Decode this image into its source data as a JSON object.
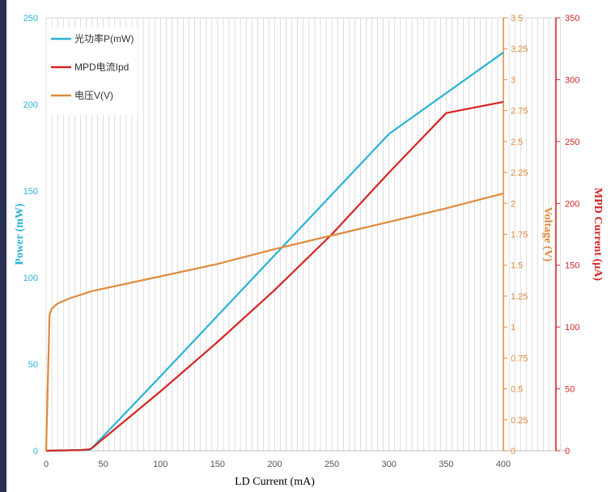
{
  "chart_data": {
    "type": "line",
    "xlabel": "LD Current (mA)",
    "x_range": [
      0,
      450
    ],
    "x_ticks": [
      0,
      50,
      100,
      150,
      200,
      250,
      300,
      350,
      400
    ],
    "grid": {
      "vertical_minor": true,
      "vertical_minor_step": 5
    },
    "legend_position": "top-left",
    "axes": {
      "power": {
        "label": "Power (mW)",
        "range": [
          0,
          250
        ],
        "ticks": [
          0,
          50,
          100,
          150,
          200,
          250
        ],
        "side": "left",
        "color": "#29b3d6"
      },
      "voltage": {
        "label": "Voltage (V)",
        "range": [
          0,
          3.5
        ],
        "ticks": [
          "0",
          "0.25",
          "0.5",
          "0.75",
          "1",
          "1.25",
          "1.5",
          "1.75",
          "2",
          "2.25",
          "2.5",
          "2.75",
          "3",
          "3.25",
          "3.5"
        ],
        "side": "right",
        "color": "#e08a3c"
      },
      "mpd": {
        "label": "MPD Current (μA)",
        "range": [
          0,
          350
        ],
        "ticks": [
          0,
          50,
          100,
          150,
          200,
          250,
          300,
          350
        ],
        "side": "right",
        "color": "#d42424"
      }
    },
    "series": [
      {
        "name": "光功率P(mW)",
        "axis": "power",
        "color": "#29b3d6",
        "x": [
          0,
          38,
          40,
          100,
          200,
          300,
          400
        ],
        "y": [
          0,
          0.5,
          1.5,
          43,
          113,
          183,
          230
        ]
      },
      {
        "name": "MPD电流Ipd",
        "axis": "mpd",
        "color": "#d42424",
        "x": [
          0,
          30,
          38,
          40,
          100,
          150,
          200,
          250,
          300,
          350,
          400
        ],
        "y": [
          0,
          0.5,
          1.2,
          2,
          48,
          88,
          130,
          175,
          225,
          273,
          282
        ]
      },
      {
        "name": "电压V(V)",
        "axis": "voltage",
        "color": "#e08a3c",
        "x": [
          0,
          3,
          5,
          10,
          20,
          40,
          60,
          100,
          150,
          200,
          250,
          300,
          350,
          400
        ],
        "y": [
          0,
          1.1,
          1.15,
          1.19,
          1.23,
          1.29,
          1.33,
          1.41,
          1.51,
          1.63,
          1.74,
          1.85,
          1.96,
          2.08
        ]
      }
    ]
  }
}
